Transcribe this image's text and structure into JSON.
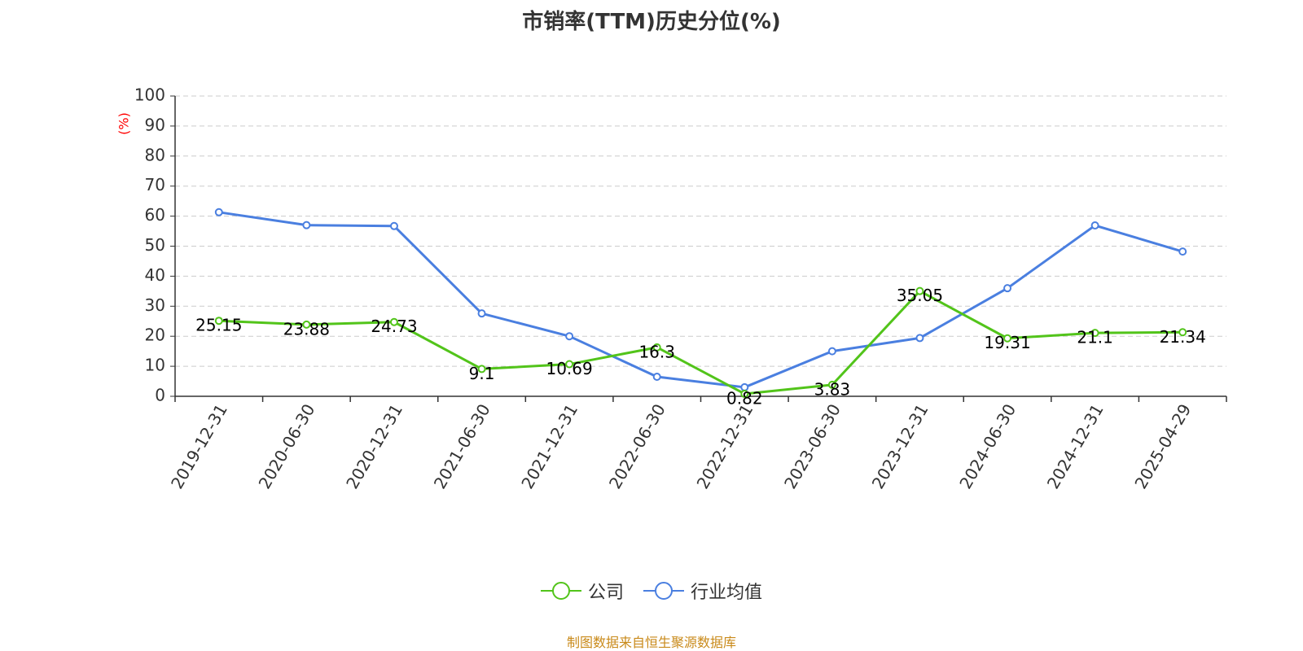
{
  "chart_data": {
    "type": "line",
    "title": "市销率(TTM)历史分位(%)",
    "ylabel": "(%)",
    "xlabel": "",
    "ylim": [
      0,
      100
    ],
    "yticks": [
      0,
      10,
      20,
      30,
      40,
      50,
      60,
      70,
      80,
      90,
      100
    ],
    "grid": true,
    "legend_position": "bottom",
    "categories": [
      "2019-12-31",
      "2020-06-30",
      "2020-12-31",
      "2021-06-30",
      "2021-12-31",
      "2022-06-30",
      "2022-12-31",
      "2023-06-30",
      "2023-12-31",
      "2024-06-30",
      "2024-12-31",
      "2025-04-29"
    ],
    "series": [
      {
        "name": "公司",
        "color": "#52c41a",
        "show_labels": true,
        "values": [
          25.15,
          23.88,
          24.73,
          9.1,
          10.69,
          16.3,
          0.82,
          3.83,
          35.05,
          19.31,
          21.1,
          21.34
        ],
        "labels": [
          "25.15",
          "23.88",
          "24.73",
          "9.1",
          "10.69",
          "16.3",
          "0.82",
          "3.83",
          "35.05",
          "19.31",
          "21.1",
          "21.34"
        ]
      },
      {
        "name": "行业均值",
        "color": "#4a7fe0",
        "show_labels": false,
        "values": [
          61.3,
          57.0,
          56.7,
          27.6,
          20.0,
          6.5,
          3.0,
          15.0,
          19.4,
          36.0,
          56.9,
          48.2
        ]
      }
    ]
  },
  "footer": {
    "source": "制图数据来自恒生聚源数据库"
  },
  "colors": {
    "title": "#333333",
    "ylabel": "#ff0000",
    "axis": "#333333",
    "grid": "#cccccc",
    "source": "#c98a1a"
  }
}
